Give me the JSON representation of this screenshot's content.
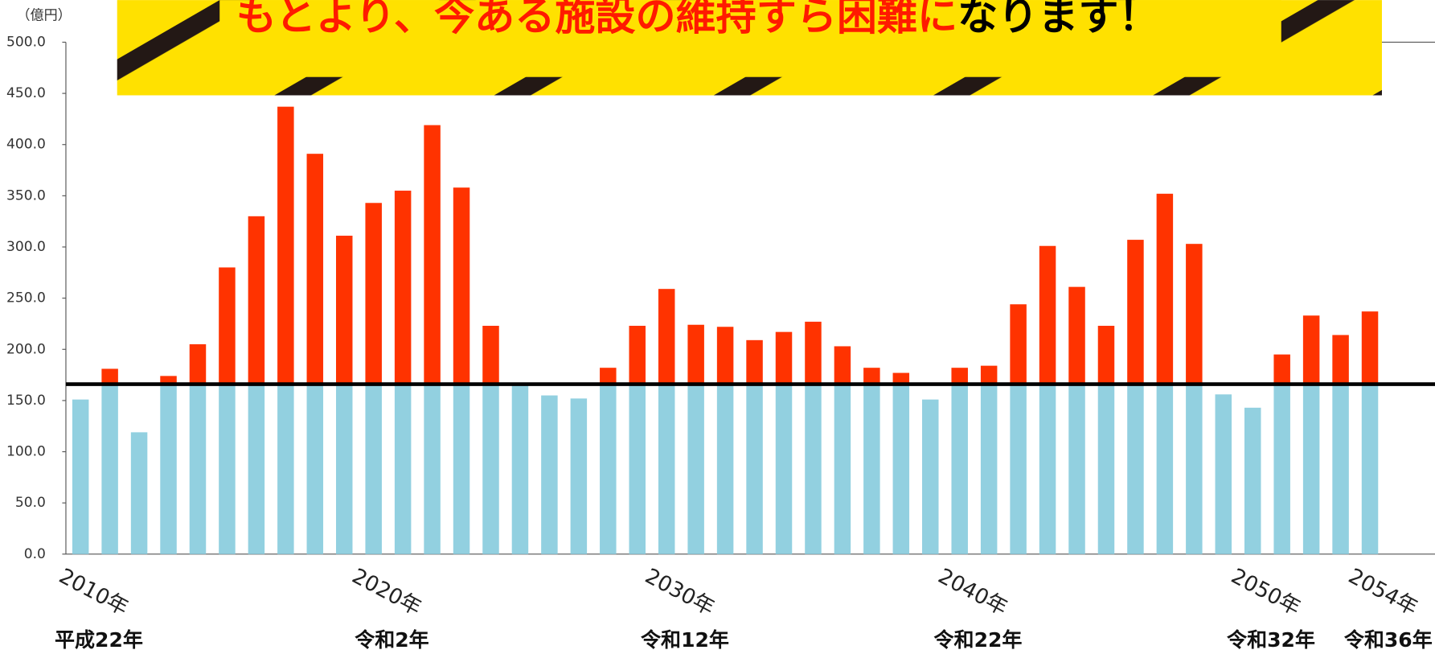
{
  "chart_data": {
    "type": "bar",
    "unit_label": "（億円）",
    "banner": {
      "red_text": "もとより、今ある施設の維持すら困難に",
      "black_text": "なります！"
    },
    "categories": [
      "2010年",
      null,
      null,
      null,
      null,
      null,
      null,
      null,
      null,
      null,
      "2020年",
      null,
      null,
      null,
      null,
      null,
      null,
      null,
      null,
      null,
      "2030年",
      null,
      null,
      null,
      null,
      null,
      null,
      null,
      null,
      null,
      "2040年",
      null,
      null,
      null,
      null,
      null,
      null,
      null,
      null,
      null,
      "2050年",
      null,
      null,
      null,
      "2054年"
    ],
    "sub_categories": [
      "平成22年",
      null,
      null,
      null,
      null,
      null,
      null,
      null,
      null,
      null,
      "令和2年",
      null,
      null,
      null,
      null,
      null,
      null,
      null,
      null,
      null,
      "令和12年",
      null,
      null,
      null,
      null,
      null,
      null,
      null,
      null,
      null,
      "令和22年",
      null,
      null,
      null,
      null,
      null,
      null,
      null,
      null,
      null,
      "令和32年",
      null,
      null,
      null,
      "令和36年"
    ],
    "values": [
      151,
      181,
      119,
      174,
      205,
      280,
      330,
      437,
      391,
      311,
      343,
      355,
      419,
      358,
      223,
      165,
      155,
      152,
      182,
      223,
      259,
      224,
      222,
      209,
      217,
      227,
      203,
      182,
      177,
      151,
      182,
      184,
      244,
      301,
      261,
      223,
      307,
      352,
      303,
      156,
      143,
      195,
      233,
      214,
      237
    ],
    "reference_line": 166,
    "below_color": "#92d0e0",
    "above_color": "#ff3300",
    "line_color": "#000000",
    "ylim": [
      0,
      500
    ],
    "yticks": [
      {
        "value": 0,
        "label": "0.0"
      },
      {
        "value": 50,
        "label": "50.0"
      },
      {
        "value": 100,
        "label": "100.0"
      },
      {
        "value": 150,
        "label": "150.0"
      },
      {
        "value": 200,
        "label": "200.0"
      },
      {
        "value": 250,
        "label": "250.0"
      },
      {
        "value": 300,
        "label": "300.0"
      },
      {
        "value": 350,
        "label": "350.0"
      },
      {
        "value": 400,
        "label": "400.0"
      },
      {
        "value": 450,
        "label": "450.0"
      },
      {
        "value": 500,
        "label": "500.0"
      }
    ]
  }
}
